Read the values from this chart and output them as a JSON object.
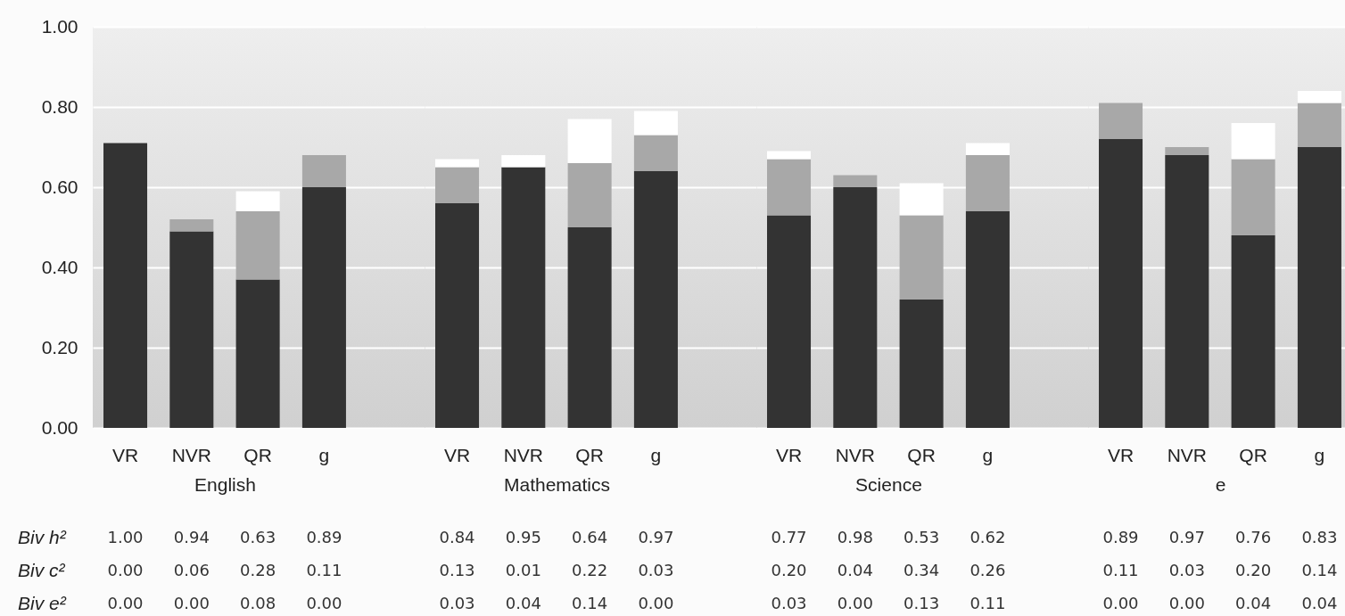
{
  "chart_data": [
    {
      "type": "bar",
      "categories": [
        "VR",
        "NVR",
        "QR",
        "g"
      ],
      "xlabel": "English",
      "stacked": true,
      "ylim": [
        0,
        1
      ],
      "yticks": [
        {
          "value": 0,
          "label": "0.00"
        },
        {
          "value": 0.2,
          "label": "0.20"
        },
        {
          "value": 0.4,
          "label": "0.40"
        },
        {
          "value": 0.6,
          "label": "0.60"
        },
        {
          "value": 0.8,
          "label": "0.80"
        },
        {
          "value": 1,
          "label": "1.00"
        }
      ],
      "grid": "y",
      "series": [
        {
          "color": "#333333",
          "values": [
            0.71,
            0.49,
            0.37,
            0.6
          ]
        },
        {
          "color": "#a8a8a8",
          "values": [
            0,
            0.03,
            0.17,
            0.08
          ]
        },
        {
          "color": "#ffffff",
          "values": [
            0,
            0,
            0.05,
            0
          ]
        }
      ]
    },
    {
      "type": "bar",
      "categories": [
        "VR",
        "NVR",
        "QR",
        "g"
      ],
      "xlabel": "Mathematics",
      "stacked": true,
      "ylim": [
        0,
        1
      ],
      "yticks": [
        0,
        0.2,
        0.4,
        0.6,
        0.8,
        1
      ],
      "grid": "y",
      "tick_labels": "x",
      "series": [
        {
          "color": "#333333",
          "values": [
            0.56,
            0.65,
            0.5,
            0.64
          ]
        },
        {
          "color": "#a8a8a8",
          "values": [
            0.09,
            0,
            0.16,
            0.09
          ]
        },
        {
          "color": "#ffffff",
          "values": [
            0.02,
            0.03,
            0.11,
            0.06
          ]
        }
      ]
    },
    {
      "type": "bar",
      "categories": [
        "VR",
        "NVR",
        "QR",
        "g"
      ],
      "xlabel": "Science",
      "stacked": true,
      "ylim": [
        0,
        1
      ],
      "yticks": [
        0,
        0.2,
        0.4,
        0.6,
        0.8,
        1
      ],
      "grid": "y",
      "tick_labels": "x",
      "series": [
        {
          "color": "#333333",
          "values": [
            0.53,
            0.6,
            0.32,
            0.54
          ]
        },
        {
          "color": "#a8a8a8",
          "values": [
            0.14,
            0.03,
            0.21,
            0.14
          ]
        },
        {
          "color": "#ffffff",
          "values": [
            0.02,
            0,
            0.08,
            0.03
          ]
        }
      ]
    },
    {
      "type": "bar",
      "categories": [
        "VR",
        "NVR",
        "QR",
        "g"
      ],
      "xlabel": "e",
      "stacked": true,
      "ylim": [
        0,
        1
      ],
      "yticks": [
        0,
        0.2,
        0.4,
        0.6,
        0.8,
        1
      ],
      "grid": "y",
      "tick_labels": "x",
      "series": [
        {
          "color": "#333333",
          "values": [
            0.72,
            0.68,
            0.48,
            0.7
          ]
        },
        {
          "color": "#a8a8a8",
          "values": [
            0.09,
            0.02,
            0.19,
            0.11
          ]
        },
        {
          "color": "#ffffff",
          "values": [
            0,
            0,
            0.09,
            0.03
          ]
        }
      ]
    },
    {
      "type": "other",
      "annotations": [
        "Biv h²",
        "1.00",
        "0.94",
        "0.63",
        "0.89",
        "0.84",
        "0.95",
        "0.64",
        "0.97",
        "0.77",
        "0.98",
        "0.53",
        "0.62",
        "0.89",
        "0.97",
        "0.76",
        "0.83",
        "Biv c²",
        "0.00",
        "0.06",
        "0.28",
        "0.11",
        "0.13",
        "0.01",
        "0.22",
        "0.03",
        "0.20",
        "0.04",
        "0.34",
        "0.26",
        "0.11",
        "0.03",
        "0.20",
        "0.14",
        "Biv e²",
        "0.00",
        "0.00",
        "0.08",
        "0.00",
        "0.03",
        "0.04",
        "0.14",
        "0.00",
        "0.03",
        "0.00",
        "0.13",
        "0.11",
        "0.00",
        "0.00",
        "0.04",
        "0.04"
      ]
    }
  ]
}
